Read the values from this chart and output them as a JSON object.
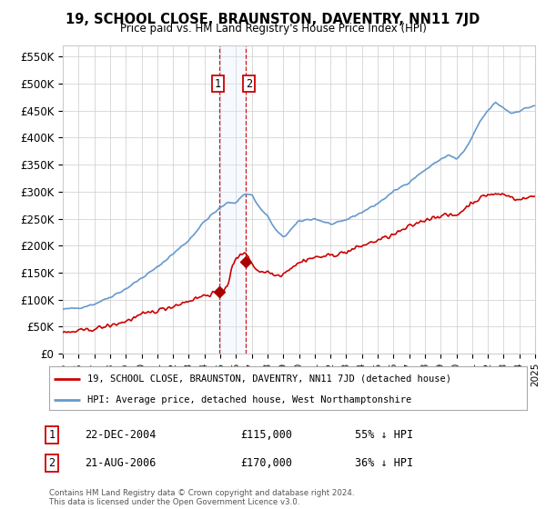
{
  "title": "19, SCHOOL CLOSE, BRAUNSTON, DAVENTRY, NN11 7JD",
  "subtitle": "Price paid vs. HM Land Registry's House Price Index (HPI)",
  "ylabel_ticks": [
    "£0",
    "£50K",
    "£100K",
    "£150K",
    "£200K",
    "£250K",
    "£300K",
    "£350K",
    "£400K",
    "£450K",
    "£500K",
    "£550K"
  ],
  "ytick_values": [
    0,
    50000,
    100000,
    150000,
    200000,
    250000,
    300000,
    350000,
    400000,
    450000,
    500000,
    550000
  ],
  "ylim": [
    0,
    570000
  ],
  "x_start_year": 1995,
  "x_end_year": 2025,
  "legend_line1": "19, SCHOOL CLOSE, BRAUNSTON, DAVENTRY, NN11 7JD (detached house)",
  "legend_line2": "HPI: Average price, detached house, West Northamptonshire",
  "sale1_date": "22-DEC-2004",
  "sale1_price": 115000,
  "sale1_label": "1",
  "sale1_pct": "55% ↓ HPI",
  "sale2_date": "21-AUG-2006",
  "sale2_price": 170000,
  "sale2_label": "2",
  "sale2_pct": "36% ↓ HPI",
  "footer": "Contains HM Land Registry data © Crown copyright and database right 2024.\nThis data is licensed under the Open Government Licence v3.0.",
  "hpi_color": "#6699cc",
  "price_color": "#cc0000",
  "sale_marker_color": "#aa0000",
  "vline_color": "#cc0000",
  "highlight_color": "#ddeeff",
  "background_color": "#ffffff",
  "grid_color": "#cccccc",
  "hpi_keypoints_x": [
    1995,
    1996,
    1997,
    1998,
    1999,
    2000,
    2001,
    2002,
    2003,
    2004,
    2004.5,
    2005,
    2005.5,
    2006,
    2006.5,
    2007,
    2007.5,
    2008,
    2008.5,
    2009,
    2009.5,
    2010,
    2010.5,
    2011,
    2011.5,
    2012,
    2012.5,
    2013,
    2014,
    2015,
    2016,
    2017,
    2018,
    2019,
    2019.5,
    2020,
    2020.5,
    2021,
    2021.5,
    2022,
    2022.5,
    2023,
    2023.5,
    2024,
    2024.5,
    2025
  ],
  "hpi_keypoints_y": [
    82000,
    85000,
    92000,
    105000,
    120000,
    140000,
    160000,
    185000,
    210000,
    245000,
    258000,
    270000,
    280000,
    280000,
    295000,
    295000,
    270000,
    255000,
    230000,
    215000,
    230000,
    245000,
    248000,
    250000,
    245000,
    240000,
    242000,
    248000,
    262000,
    278000,
    300000,
    318000,
    340000,
    360000,
    368000,
    360000,
    375000,
    400000,
    430000,
    450000,
    465000,
    455000,
    445000,
    450000,
    455000,
    460000
  ],
  "price_keypoints_x": [
    1995,
    1996,
    1997,
    1998,
    1999,
    2000,
    2001,
    2002,
    2003,
    2004,
    2004.97,
    2005.2,
    2005.5,
    2005.7,
    2006,
    2006.6,
    2006.8,
    2007,
    2007.2,
    2007.5,
    2008,
    2008.3,
    2008.5,
    2009,
    2009.3,
    2009.5,
    2010,
    2010.5,
    2011,
    2012,
    2013,
    2014,
    2015,
    2016,
    2017,
    2018,
    2019,
    2020,
    2021,
    2022,
    2023,
    2024,
    2025
  ],
  "price_keypoints_y": [
    38000,
    42000,
    46000,
    52000,
    60000,
    72000,
    80000,
    88000,
    98000,
    108000,
    115000,
    118000,
    130000,
    155000,
    175000,
    190000,
    175000,
    168000,
    160000,
    152000,
    152000,
    148000,
    145000,
    148000,
    155000,
    160000,
    168000,
    175000,
    178000,
    182000,
    188000,
    200000,
    210000,
    220000,
    235000,
    248000,
    256000,
    256000,
    280000,
    295000,
    295000,
    285000,
    292000
  ]
}
